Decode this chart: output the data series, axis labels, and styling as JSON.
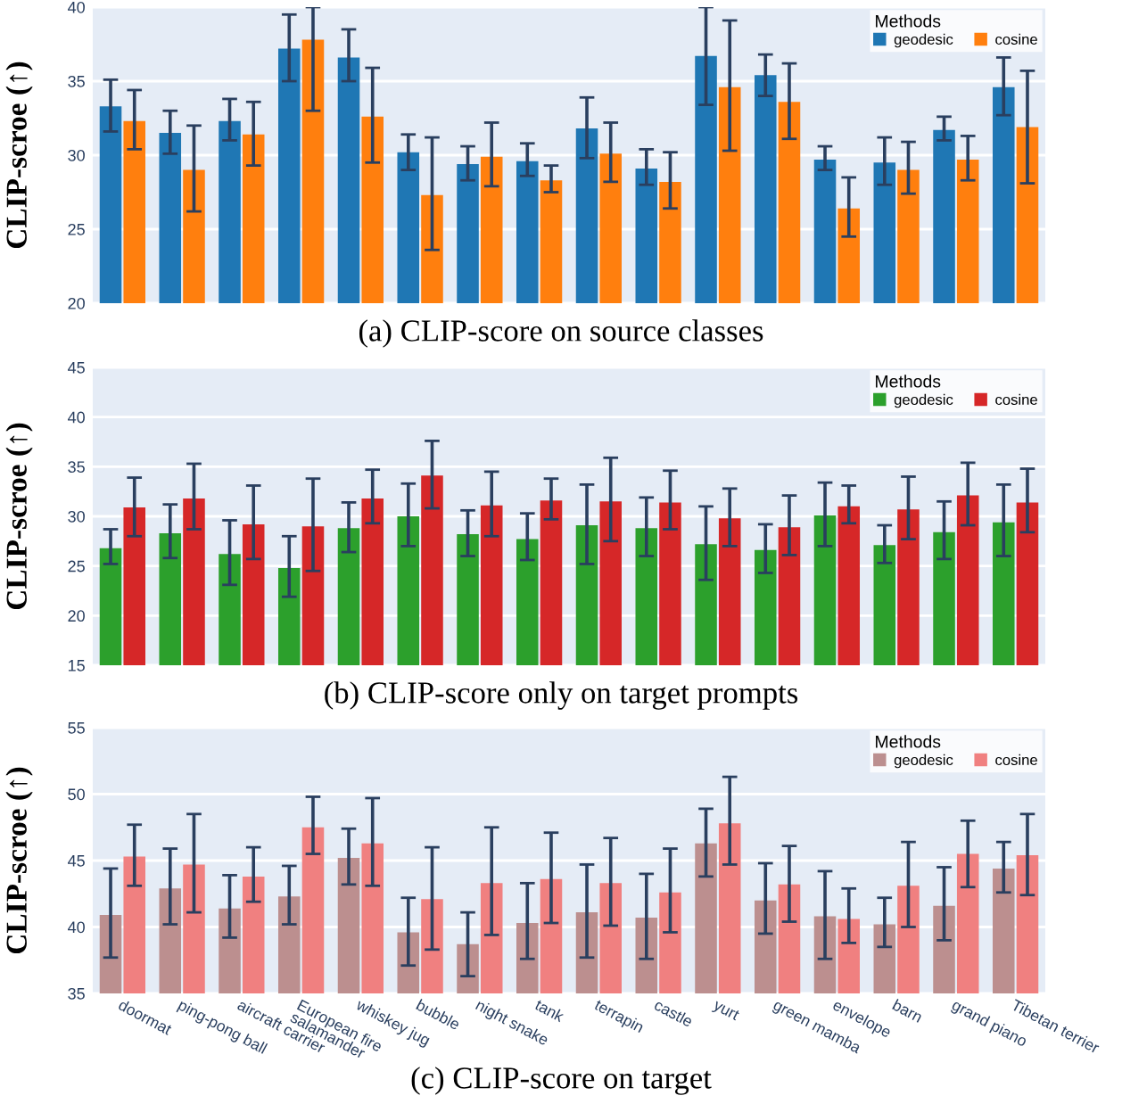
{
  "chart_data": [
    {
      "type": "bar",
      "title": "(a) CLIP-score on source classes",
      "ylabel": "CLIP-scroe (↑)",
      "legend_title": "Methods",
      "legend": "top right",
      "grid": "y",
      "categories": [
        null,
        null,
        null,
        null,
        null,
        null,
        null,
        null,
        null,
        null,
        null,
        null,
        null,
        null,
        null,
        null
      ],
      "ylim": [
        20,
        40
      ],
      "yticks": [
        20,
        25,
        30,
        35,
        40
      ],
      "series": [
        {
          "name": "geodesic",
          "color": "#1f77b4",
          "values": [
            33.3,
            31.5,
            32.3,
            37.2,
            36.6,
            30.2,
            29.4,
            29.6,
            31.8,
            29.1,
            36.7,
            35.4,
            29.7,
            29.5,
            31.7,
            34.6
          ],
          "errors": [
            [
              31.6,
              35.1
            ],
            [
              30.1,
              33.0
            ],
            [
              31.0,
              33.8
            ],
            [
              35.0,
              39.5
            ],
            [
              35.0,
              38.5
            ],
            [
              29.0,
              31.4
            ],
            [
              28.3,
              30.6
            ],
            [
              28.6,
              30.8
            ],
            [
              29.8,
              33.9
            ],
            [
              28.0,
              30.4
            ],
            [
              33.4,
              40
            ],
            [
              34.0,
              36.8
            ],
            [
              29.0,
              30.6
            ],
            [
              28.0,
              31.2
            ],
            [
              31.0,
              32.6
            ],
            [
              32.7,
              36.6
            ]
          ]
        },
        {
          "name": "cosine",
          "color": "#ff7f0e",
          "values": [
            32.3,
            29.0,
            31.4,
            37.8,
            32.6,
            27.3,
            29.9,
            28.3,
            30.1,
            28.2,
            34.6,
            33.6,
            26.4,
            29.0,
            29.7,
            31.9
          ],
          "errors": [
            [
              30.4,
              34.4
            ],
            [
              26.2,
              32.0
            ],
            [
              29.3,
              33.6
            ],
            [
              33.0,
              40
            ],
            [
              29.5,
              35.9
            ],
            [
              23.6,
              31.2
            ],
            [
              27.9,
              32.2
            ],
            [
              27.5,
              29.3
            ],
            [
              28.2,
              32.2
            ],
            [
              26.4,
              30.2
            ],
            [
              30.3,
              39.1
            ],
            [
              31.1,
              36.2
            ],
            [
              24.5,
              28.5
            ],
            [
              27.4,
              30.9
            ],
            [
              28.3,
              31.3
            ],
            [
              28.1,
              35.7
            ]
          ]
        }
      ]
    },
    {
      "type": "bar",
      "title": "(b) CLIP-score only on target prompts",
      "ylabel": "CLIP-scroe (↑)",
      "legend_title": "Methods",
      "legend": "top right",
      "grid": "y",
      "categories": [
        null,
        null,
        null,
        null,
        null,
        null,
        null,
        null,
        null,
        null,
        null,
        null,
        null,
        null,
        null,
        null
      ],
      "ylim": [
        15,
        45
      ],
      "yticks": [
        15,
        20,
        25,
        30,
        35,
        40,
        45
      ],
      "series": [
        {
          "name": "geodesic",
          "color": "#2ca02c",
          "values": [
            26.8,
            28.3,
            26.2,
            24.8,
            28.8,
            30.0,
            28.2,
            27.7,
            29.1,
            28.8,
            27.2,
            26.6,
            30.1,
            27.1,
            28.4,
            29.4
          ],
          "errors": [
            [
              25.2,
              28.7
            ],
            [
              25.8,
              31.2
            ],
            [
              23.1,
              29.6
            ],
            [
              21.9,
              28.0
            ],
            [
              26.4,
              31.4
            ],
            [
              27.0,
              33.3
            ],
            [
              26.0,
              30.6
            ],
            [
              25.6,
              30.3
            ],
            [
              25.2,
              33.2
            ],
            [
              26.0,
              31.9
            ],
            [
              23.6,
              31.0
            ],
            [
              24.3,
              29.2
            ],
            [
              27.0,
              33.4
            ],
            [
              25.3,
              29.1
            ],
            [
              25.7,
              31.5
            ],
            [
              26.0,
              33.2
            ]
          ]
        },
        {
          "name": "cosine",
          "color": "#d62728",
          "values": [
            30.9,
            31.8,
            29.2,
            29.0,
            31.8,
            34.1,
            31.1,
            31.6,
            31.5,
            31.4,
            29.8,
            28.9,
            31.0,
            30.7,
            32.1,
            31.4
          ],
          "errors": [
            [
              28.0,
              33.9
            ],
            [
              28.7,
              35.3
            ],
            [
              25.7,
              33.1
            ],
            [
              24.5,
              33.8
            ],
            [
              29.3,
              34.7
            ],
            [
              30.8,
              37.6
            ],
            [
              28.0,
              34.5
            ],
            [
              29.7,
              33.8
            ],
            [
              27.5,
              35.9
            ],
            [
              28.7,
              34.6
            ],
            [
              27.0,
              32.8
            ],
            [
              26.1,
              32.1
            ],
            [
              29.3,
              33.1
            ],
            [
              27.7,
              34.0
            ],
            [
              29.1,
              35.4
            ],
            [
              28.4,
              34.8
            ]
          ]
        }
      ]
    },
    {
      "type": "bar",
      "title": "(c) CLIP-score on target",
      "ylabel": "CLIP-scroe (↑)",
      "legend_title": "Methods",
      "legend": "top right",
      "grid": "y",
      "categories": [
        "doormat",
        "ping-pong ball",
        "aircraft carrier",
        "European fire salamander",
        "whiskey jug",
        "bubble",
        "night snake",
        "tank",
        "terrapin",
        "castle",
        "yurt",
        "green mamba",
        "envelope",
        "barn",
        "grand piano",
        "Tibetan terrier"
      ],
      "ylim": [
        35,
        55
      ],
      "yticks": [
        35,
        40,
        45,
        50,
        55
      ],
      "series": [
        {
          "name": "geodesic",
          "color": "#bc8f8f",
          "values": [
            40.9,
            42.9,
            41.4,
            42.3,
            45.2,
            39.6,
            38.7,
            40.3,
            41.1,
            40.7,
            46.3,
            42.0,
            40.8,
            40.2,
            41.6,
            44.4
          ],
          "errors": [
            [
              37.7,
              44.4
            ],
            [
              40.2,
              45.9
            ],
            [
              39.2,
              43.9
            ],
            [
              40.2,
              44.6
            ],
            [
              43.2,
              47.4
            ],
            [
              37.1,
              42.2
            ],
            [
              36.3,
              41.1
            ],
            [
              37.6,
              43.3
            ],
            [
              37.7,
              44.7
            ],
            [
              37.6,
              44.0
            ],
            [
              43.8,
              48.9
            ],
            [
              39.5,
              44.8
            ],
            [
              37.6,
              44.2
            ],
            [
              38.5,
              42.2
            ],
            [
              39.0,
              44.5
            ],
            [
              42.6,
              46.4
            ]
          ]
        },
        {
          "name": "cosine",
          "color": "#f08080",
          "values": [
            45.3,
            44.7,
            43.8,
            47.5,
            46.3,
            42.1,
            43.3,
            43.6,
            43.3,
            42.6,
            47.8,
            43.2,
            40.6,
            43.1,
            45.5,
            45.4
          ],
          "errors": [
            [
              43.1,
              47.7
            ],
            [
              41.1,
              48.5
            ],
            [
              41.9,
              46.0
            ],
            [
              45.5,
              49.8
            ],
            [
              43.1,
              49.7
            ],
            [
              38.3,
              46.0
            ],
            [
              39.4,
              47.5
            ],
            [
              40.3,
              47.1
            ],
            [
              40.1,
              46.7
            ],
            [
              39.6,
              45.9
            ],
            [
              44.7,
              51.3
            ],
            [
              40.4,
              46.1
            ],
            [
              38.8,
              42.9
            ],
            [
              40.0,
              46.4
            ],
            [
              43.0,
              48.0
            ],
            [
              42.4,
              48.5
            ]
          ]
        }
      ]
    }
  ]
}
